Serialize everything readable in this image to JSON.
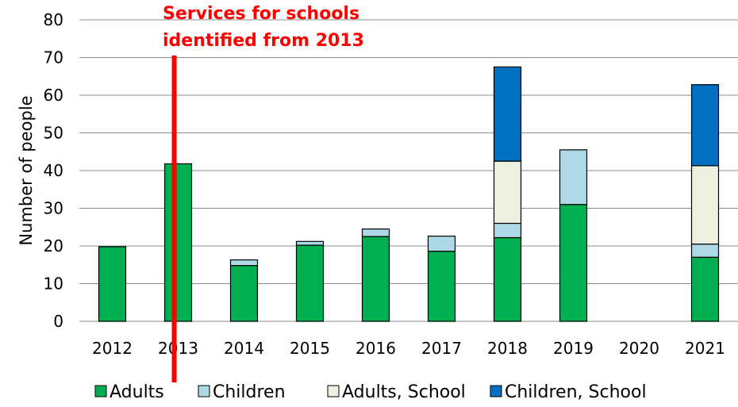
{
  "chart_data": {
    "type": "bar",
    "stacked": true,
    "categories": [
      "2012",
      "2013",
      "2014",
      "2015",
      "2016",
      "2017",
      "2018",
      "2019",
      "2020",
      "2021"
    ],
    "series": [
      {
        "name": "Adults",
        "color": "#00b050",
        "values": [
          19.8,
          41.8,
          14.8,
          20.2,
          22.5,
          18.6,
          22.2,
          31.0,
          0,
          17.0
        ]
      },
      {
        "name": "Children",
        "color": "#add8e6",
        "values": [
          0,
          0,
          1.5,
          1.0,
          2.0,
          4.0,
          3.8,
          14.5,
          0,
          3.5
        ]
      },
      {
        "name": "Adults, School",
        "color": "#ebf1de",
        "values": [
          0,
          0,
          0,
          0,
          0,
          0,
          16.5,
          0,
          0,
          20.8
        ]
      },
      {
        "name": "Children, School",
        "color": "#0070c0",
        "values": [
          0,
          0,
          0,
          0,
          0,
          0,
          25.0,
          0,
          0,
          21.5
        ]
      }
    ],
    "ylabel": "Number of people",
    "xlabel": "",
    "ylim": [
      0,
      80
    ],
    "yticks": [
      0,
      10,
      20,
      30,
      40,
      50,
      60,
      70,
      80
    ],
    "grid": true,
    "legend_position": "bottom",
    "annotation": {
      "lines": [
        "Services for schools",
        "identified from 2013"
      ],
      "color": "#ff0000",
      "at_category": "2013"
    }
  }
}
